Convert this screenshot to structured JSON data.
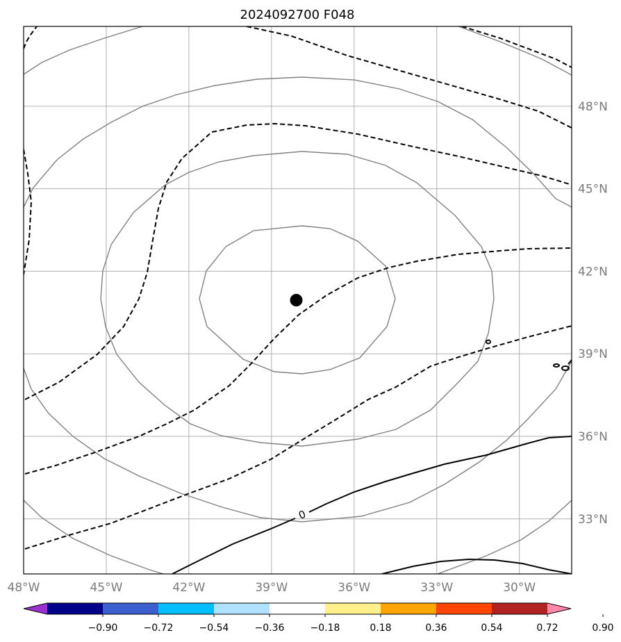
{
  "title": "2024092700 F048",
  "map": {
    "lon_labels": [
      "48°W",
      "45°W",
      "42°W",
      "39°W",
      "36°W",
      "33°W",
      "30°W"
    ],
    "lon_values": [
      -48,
      -45,
      -42,
      -39,
      -36,
      -33,
      -30
    ],
    "lat_labels": [
      "48°N",
      "45°N",
      "42°N",
      "39°N",
      "36°N",
      "33°N"
    ],
    "lat_values": [
      48,
      45,
      42,
      39,
      36,
      33
    ],
    "extent": {
      "lon": [
        -48.0,
        -28.1
      ],
      "lat": [
        31.0,
        50.9
      ]
    },
    "grid": true,
    "gridline_color": "#b0b0b0",
    "center_marker": {
      "lon": -38.1,
      "lat": 40.95,
      "color": "#000000"
    },
    "zero_contour_label": "0",
    "contour_styles": {
      "gray": "#808080",
      "negative": "dashed",
      "zero": "solid"
    }
  },
  "colorbar": {
    "tick_labels": [
      "−0.90",
      "−0.72",
      "−0.54",
      "−0.36",
      "−0.18",
      "0.18",
      "0.36",
      "0.54",
      "0.72",
      "0.90"
    ],
    "levels": [
      -0.9,
      -0.72,
      -0.54,
      -0.36,
      -0.18,
      0.18,
      0.36,
      0.54,
      0.72,
      0.9
    ],
    "colors": [
      "#9b30d0",
      "#00008b",
      "#3c5fd0",
      "#00bfff",
      "#b0e2ff",
      "#ffffff",
      "#fff08c",
      "#ffa500",
      "#ff4500",
      "#b22222",
      "#ff88aa"
    ],
    "extend": "both"
  }
}
